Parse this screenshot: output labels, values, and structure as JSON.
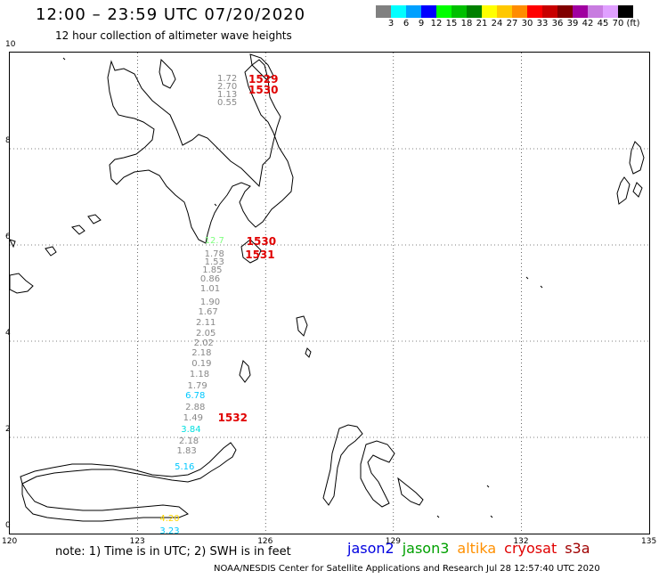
{
  "header": {
    "title": "12:00 – 23:59 UTC 07/20/2020",
    "subtitle": "12 hour collection of altimeter wave heights"
  },
  "colorbar": {
    "colors": [
      "#808080",
      "#00ffff",
      "#00a0ff",
      "#0000ff",
      "#00ff00",
      "#00c000",
      "#008000",
      "#ffff00",
      "#ffc800",
      "#ff8c00",
      "#ff0000",
      "#c80000",
      "#800000",
      "#a000a0",
      "#c87ce0",
      "#e0a0ff",
      "#000000"
    ],
    "labels": [
      "3",
      "6",
      "9",
      "12",
      "15",
      "18",
      "21",
      "24",
      "27",
      "30",
      "33",
      "36",
      "39",
      "42",
      "45",
      "70",
      "(ft)"
    ]
  },
  "axes": {
    "x_ticks": [
      "120",
      "123",
      "126",
      "129",
      "132",
      "135"
    ],
    "y_ticks": [
      "10",
      "8",
      "6",
      "4",
      "2",
      "0"
    ]
  },
  "map_data": {
    "lon_range": [
      120,
      135
    ],
    "lat_range": [
      0,
      10
    ],
    "wave_labels": [
      {
        "lon": 125.1,
        "lat": 9.45,
        "text": "1.72",
        "color": "#888888"
      },
      {
        "lon": 125.1,
        "lat": 9.27,
        "text": "2.70",
        "color": "#888888"
      },
      {
        "lon": 125.1,
        "lat": 9.11,
        "text": "1.13",
        "color": "#888888"
      },
      {
        "lon": 125.1,
        "lat": 8.94,
        "text": "0.55",
        "color": "#888888"
      },
      {
        "lon": 124.8,
        "lat": 6.07,
        "text": "12.7",
        "color": "#7fff7f"
      },
      {
        "lon": 124.8,
        "lat": 5.8,
        "text": "1.78",
        "color": "#888888"
      },
      {
        "lon": 124.8,
        "lat": 5.63,
        "text": "1.53",
        "color": "#888888"
      },
      {
        "lon": 124.75,
        "lat": 5.47,
        "text": "1.85",
        "color": "#888888"
      },
      {
        "lon": 124.7,
        "lat": 5.27,
        "text": "0.86",
        "color": "#888888"
      },
      {
        "lon": 124.7,
        "lat": 5.07,
        "text": "1.01",
        "color": "#888888"
      },
      {
        "lon": 124.7,
        "lat": 4.8,
        "text": "1.90",
        "color": "#888888"
      },
      {
        "lon": 124.65,
        "lat": 4.6,
        "text": "1.67",
        "color": "#888888"
      },
      {
        "lon": 124.6,
        "lat": 4.37,
        "text": "2.11",
        "color": "#888888"
      },
      {
        "lon": 124.6,
        "lat": 4.14,
        "text": "2.05",
        "color": "#888888"
      },
      {
        "lon": 124.55,
        "lat": 3.94,
        "text": "2.02",
        "color": "#888888"
      },
      {
        "lon": 124.5,
        "lat": 3.74,
        "text": "2.18",
        "color": "#888888"
      },
      {
        "lon": 124.5,
        "lat": 3.52,
        "text": "0.19",
        "color": "#888888"
      },
      {
        "lon": 124.45,
        "lat": 3.3,
        "text": "1.18",
        "color": "#888888"
      },
      {
        "lon": 124.4,
        "lat": 3.06,
        "text": "1.79",
        "color": "#888888"
      },
      {
        "lon": 124.35,
        "lat": 2.85,
        "text": "6.78",
        "color": "#00c8ff"
      },
      {
        "lon": 124.35,
        "lat": 2.62,
        "text": "2.88",
        "color": "#888888"
      },
      {
        "lon": 124.3,
        "lat": 2.38,
        "text": "1.49",
        "color": "#888888"
      },
      {
        "lon": 124.25,
        "lat": 2.14,
        "text": "3.84",
        "color": "#00e0e0"
      },
      {
        "lon": 124.2,
        "lat": 1.91,
        "text": "2.18",
        "color": "#888888"
      },
      {
        "lon": 124.15,
        "lat": 1.7,
        "text": "1.83",
        "color": "#888888"
      },
      {
        "lon": 124.1,
        "lat": 1.37,
        "text": "5.16",
        "color": "#00c8ff"
      },
      {
        "lon": 123.75,
        "lat": 0.3,
        "text": "4.20",
        "color": "#ffd700"
      },
      {
        "lon": 123.75,
        "lat": 0.04,
        "text": "3.23",
        "color": "#00c8ff"
      }
    ],
    "time_labels": [
      {
        "lon": 125.6,
        "lat": 9.45,
        "text": "1529"
      },
      {
        "lon": 125.6,
        "lat": 9.22,
        "text": "1530"
      },
      {
        "lon": 125.55,
        "lat": 6.07,
        "text": "1530"
      },
      {
        "lon": 125.52,
        "lat": 5.8,
        "text": "1531"
      },
      {
        "lon": 124.88,
        "lat": 2.4,
        "text": "1532"
      }
    ]
  },
  "footer": {
    "note": "note:  1) Time is in UTC;  2) SWH is in feet",
    "legend": [
      {
        "name": "jason2",
        "color": "#0000e0"
      },
      {
        "name": "jason3",
        "color": "#00a000"
      },
      {
        "name": "altika",
        "color": "#ff9000"
      },
      {
        "name": "cryosat",
        "color": "#e00000"
      },
      {
        "name": "s3a",
        "color": "#a00000"
      }
    ],
    "credit": "NOAA/NESDIS Center for Satellite Applications and Research     Jul 28 12:57:40 UTC 2020"
  }
}
